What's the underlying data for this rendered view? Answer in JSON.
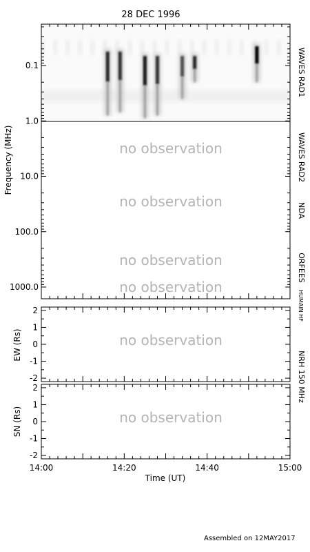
{
  "figure": {
    "title": "28 DEC 1996",
    "footer": "Assembled on 12MAY2017",
    "no_observation_label": "no observation"
  },
  "chart_data": [
    {
      "type": "heatmap",
      "panel": "dynamic-spectrum",
      "ylabel": "Frequency (MHz)",
      "yscale": "log",
      "yreversed": true,
      "ylim": [
        1200,
        0.05
      ],
      "ytick_labels": [
        {
          "value": 0.1,
          "label": "0.1"
        },
        {
          "value": 1.0,
          "label": "1.0"
        },
        {
          "value": 10.0,
          "label": "10.0"
        },
        {
          "value": 100.0,
          "label": "100.0"
        },
        {
          "value": 1000.0,
          "label": "1000.0"
        }
      ],
      "xlim": [
        "14:00",
        "15:00"
      ],
      "receivers": [
        {
          "name": "WAVES RAD1",
          "range_mhz": [
            0.02,
            1.0
          ],
          "observed": true
        },
        {
          "name": "WAVES RAD2",
          "range_mhz": [
            1.0,
            14.0
          ],
          "observed": false
        },
        {
          "name": "NDA",
          "range_mhz": [
            14.0,
            200.0
          ],
          "observed": false
        },
        {
          "name": "ORFEES",
          "range_mhz": [
            200.0,
            900.0
          ],
          "observed": false
        },
        {
          "name": "HUMAIN HF",
          "range_mhz": [
            900.0,
            1200.0
          ],
          "observed": false
        }
      ],
      "bursts": [
        {
          "time": "14:16",
          "f_high_mhz": 0.05,
          "f_low_mhz": 0.8,
          "intensity": 0.85
        },
        {
          "time": "14:19",
          "f_high_mhz": 0.05,
          "f_low_mhz": 0.7,
          "intensity": 0.8
        },
        {
          "time": "14:25",
          "f_high_mhz": 0.06,
          "f_low_mhz": 0.9,
          "intensity": 0.9
        },
        {
          "time": "14:28",
          "f_high_mhz": 0.06,
          "f_low_mhz": 0.8,
          "intensity": 0.8
        },
        {
          "time": "14:34",
          "f_high_mhz": 0.06,
          "f_low_mhz": 0.4,
          "intensity": 0.7
        },
        {
          "time": "14:37",
          "f_high_mhz": 0.06,
          "f_low_mhz": 0.2,
          "intensity": 0.85
        },
        {
          "time": "14:52",
          "f_high_mhz": 0.04,
          "f_low_mhz": 0.2,
          "intensity": 1.0
        }
      ]
    },
    {
      "type": "scatter",
      "panel": "nrh-ew",
      "ylabel": "EW (Rs)",
      "ylim": [
        -2.2,
        2.2
      ],
      "ytick_labels": [
        "2",
        "1",
        "0",
        "-1",
        "-2"
      ],
      "xlim": [
        "14:00",
        "15:00"
      ],
      "observed": false
    },
    {
      "type": "scatter",
      "panel": "nrh-sn",
      "ylabel": "SN (Rs)",
      "ylim": [
        -2.2,
        2.2
      ],
      "ytick_labels": [
        "2",
        "1",
        "0",
        "-1",
        "-2"
      ],
      "xlim": [
        "14:00",
        "15:00"
      ],
      "xlabel": "Time (UT)",
      "xtick_labels": [
        "14:00",
        "14:20",
        "14:40",
        "15:00"
      ],
      "right_label": "NRH 150 MHz",
      "observed": false
    }
  ]
}
